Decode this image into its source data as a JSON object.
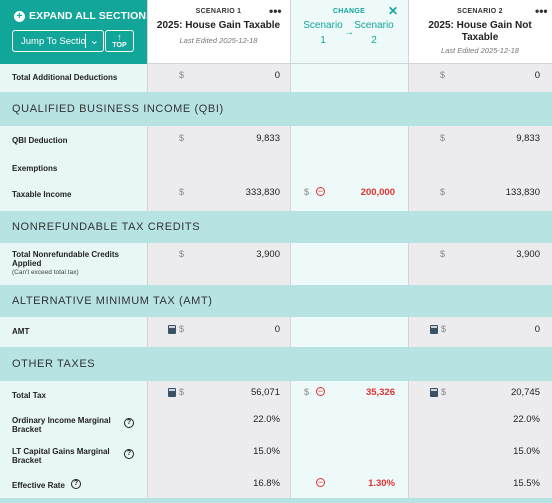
{
  "header": {
    "expand_all": "EXPAND ALL SECTIONS",
    "jump_to": "Jump To Sectio",
    "top": "TOP",
    "scenario1": {
      "label": "SCENARIO 1",
      "name": "2025: House Gain Taxable",
      "edited": "Last Edited 2025-12-18"
    },
    "change": {
      "label": "CHANGE",
      "from": "Scenario 1",
      "from_a": "Scenario",
      "from_b": "1",
      "to_a": "Scenario",
      "to_b": "2",
      "arrow": "→"
    },
    "scenario2": {
      "label": "SCENARIO 2",
      "name_a": "2025: House Gain Not",
      "name_b": "Taxable",
      "edited": "Last Edited 2025-12-18"
    },
    "more": "•••",
    "close": "✕"
  },
  "rows": {
    "total_additional_deductions": {
      "label": "Total Additional Deductions",
      "s1": "0",
      "s2": "0"
    },
    "qbi_section": "QUALIFIED BUSINESS INCOME (QBI)",
    "qbi_deduction": {
      "label": "QBI Deduction",
      "s1": "9,833",
      "s2": "9,833"
    },
    "exemptions": {
      "label": "Exemptions"
    },
    "taxable_income": {
      "label": "Taxable Income",
      "s1": "333,830",
      "change": "200,000",
      "s2": "133,830"
    },
    "nrtc_section": "NONREFUNDABLE TAX CREDITS",
    "total_nrtc": {
      "label_a": "Total Nonrefundable Credits",
      "label_b": "Applied",
      "sub": "(Can't exceed total tax)",
      "s1": "3,900",
      "s2": "3,900"
    },
    "amt_section": "ALTERNATIVE MINIMUM TAX (AMT)",
    "amt": {
      "label": "AMT",
      "s1": "0",
      "s2": "0"
    },
    "other_section": "OTHER TAXES",
    "total_tax": {
      "label": "Total Tax",
      "s1": "56,071",
      "change": "35,326",
      "s2": "20,745"
    },
    "ordinary_bracket": {
      "label_a": "Ordinary Income Marginal",
      "label_b": "Bracket",
      "s1": "22.0%",
      "s2": "22.0%"
    },
    "ltcg_bracket": {
      "label_a": "LT Capital Gains Marginal",
      "label_b": "Bracket",
      "s1": "15.0%",
      "s2": "15.0%"
    },
    "effective_rate": {
      "label": "Effective Rate",
      "s1": "16.8%",
      "change": "1.30%",
      "s2": "15.5%"
    }
  },
  "symbols": {
    "dollar": "$",
    "help": "?",
    "minus": "−"
  },
  "colors": {
    "teal": "#12a59a",
    "band": "#b7e3e3",
    "red": "#e03131"
  }
}
